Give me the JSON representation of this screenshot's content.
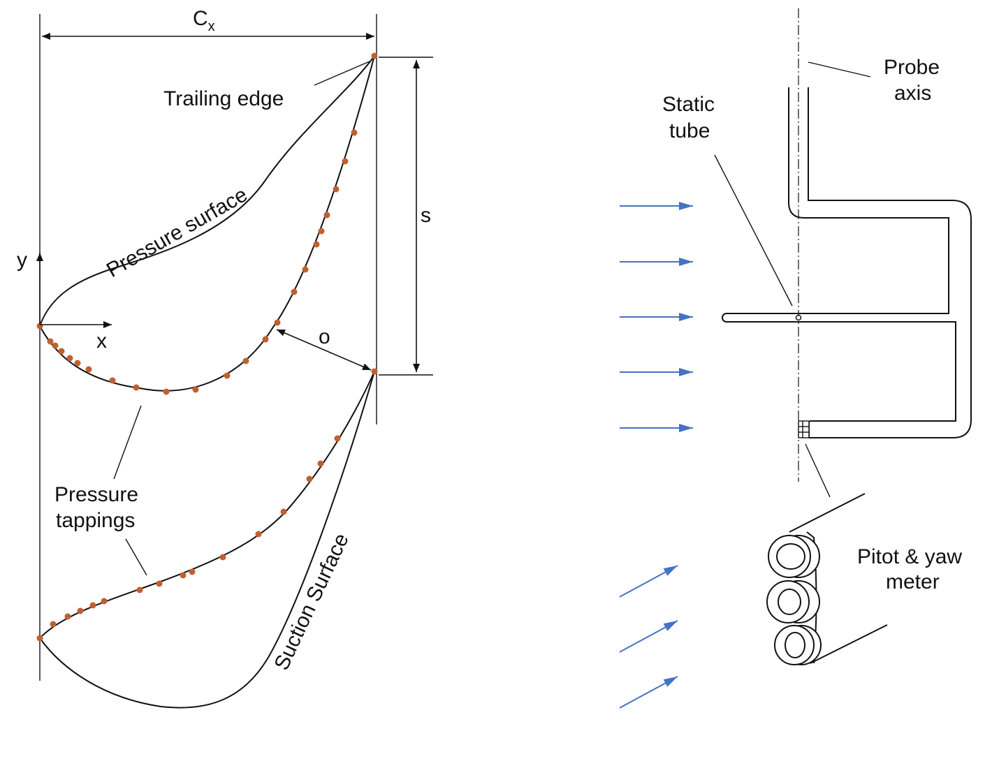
{
  "blade_diagram": {
    "cx_label": "C",
    "cx_subscript": "x",
    "trailing_edge_label": "Trailing edge",
    "pressure_surface_label": "Pressure surface",
    "suction_surface_label": "Suction Surface",
    "pressure_tappings_line1": "Pressure",
    "pressure_tappings_line2": "tappings",
    "pitch_label": "s",
    "throat_label": "o",
    "x_axis_label": "x",
    "y_axis_label": "y",
    "tapping_color": "#c0602f"
  },
  "probe_diagram": {
    "probe_axis_line1": "Probe",
    "probe_axis_line2": "axis",
    "static_tube_line1": "Static",
    "static_tube_line2": "tube",
    "pitot_line1": "Pitot & yaw",
    "pitot_line2": "meter",
    "flow_arrow_color": "#4472c4"
  }
}
